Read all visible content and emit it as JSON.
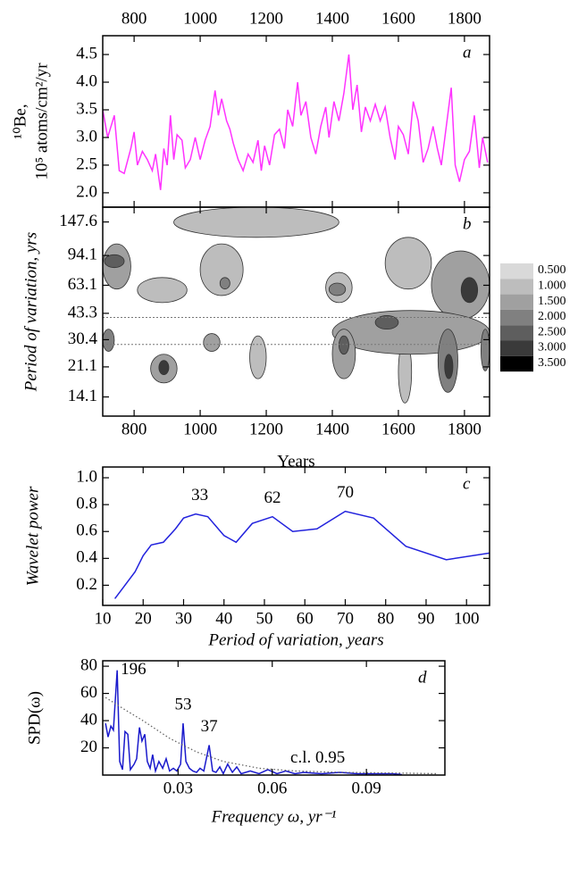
{
  "chart_data": [
    {
      "type": "line",
      "panel_label": "a",
      "ylabel": [
        "¹⁰Be,",
        "10⁵ atoms/cm²/yr"
      ],
      "xticks_position": "top",
      "x": [
        705,
        720,
        740,
        755,
        770,
        790,
        800,
        810,
        825,
        840,
        855,
        865,
        880,
        890,
        900,
        910,
        920,
        930,
        945,
        955,
        970,
        985,
        1000,
        1015,
        1030,
        1045,
        1055,
        1065,
        1080,
        1090,
        1100,
        1115,
        1130,
        1145,
        1160,
        1175,
        1185,
        1195,
        1210,
        1225,
        1240,
        1255,
        1265,
        1280,
        1295,
        1305,
        1320,
        1335,
        1350,
        1365,
        1380,
        1390,
        1405,
        1420,
        1435,
        1450,
        1462,
        1475,
        1488,
        1500,
        1515,
        1530,
        1545,
        1560,
        1575,
        1590,
        1600,
        1615,
        1630,
        1645,
        1660,
        1675,
        1690,
        1705,
        1718,
        1730,
        1745,
        1760,
        1772,
        1785,
        1800,
        1815,
        1830,
        1845,
        1855,
        1870
      ],
      "series": [
        {
          "color": "#ff33ff",
          "values": [
            3.5,
            3.0,
            3.4,
            2.4,
            2.35,
            2.8,
            3.1,
            2.5,
            2.75,
            2.6,
            2.4,
            2.7,
            2.05,
            2.8,
            2.5,
            3.4,
            2.6,
            3.05,
            2.95,
            2.45,
            2.6,
            3.0,
            2.6,
            2.95,
            3.2,
            3.85,
            3.4,
            3.7,
            3.3,
            3.15,
            2.9,
            2.6,
            2.4,
            2.7,
            2.55,
            2.95,
            2.4,
            2.85,
            2.5,
            3.05,
            3.15,
            2.8,
            3.5,
            3.2,
            4.0,
            3.4,
            3.65,
            3.0,
            2.7,
            3.2,
            3.55,
            3.0,
            3.65,
            3.3,
            3.8,
            4.5,
            3.5,
            3.95,
            3.1,
            3.55,
            3.3,
            3.6,
            3.3,
            3.55,
            3.0,
            2.6,
            3.2,
            3.05,
            2.7,
            3.65,
            3.3,
            2.55,
            2.8,
            3.2,
            2.8,
            2.5,
            3.2,
            3.9,
            2.5,
            2.2,
            2.6,
            2.75,
            3.4,
            2.45,
            3.0,
            2.55
          ]
        }
      ],
      "xlim": [
        705,
        1876
      ],
      "ylim": [
        1.74,
        4.84
      ],
      "xticks": [
        800,
        1000,
        1200,
        1400,
        1600,
        1800
      ],
      "yticks": [
        {
          "value": 2,
          "label": "2.0"
        },
        2.5,
        {
          "value": 3,
          "label": "3.0"
        },
        3.5,
        {
          "value": 4,
          "label": "4.0"
        },
        4.5
      ]
    },
    {
      "type": "contour",
      "panel_label": "b",
      "xlabel": "Years",
      "ylabel": [
        "Period of variation, yrs"
      ],
      "xticks_position": "bottom",
      "ylog": true,
      "xlim": [
        705,
        1876
      ],
      "ylim": [
        10.9,
        180
      ],
      "xticks": [
        800,
        1000,
        1200,
        1400,
        1600,
        1800
      ],
      "yticks": [
        14.1,
        21.1,
        30.4,
        43.3,
        63.1,
        94.1,
        147.6
      ],
      "reference_lines": [
        41,
        28.5
      ],
      "levels": [
        {
          "value": 0.5,
          "label": "0.500"
        },
        {
          "value": 1,
          "label": "1.000"
        },
        {
          "value": 1.5,
          "label": "1.500"
        },
        {
          "value": 2,
          "label": "2.000"
        },
        {
          "value": 2.5,
          "label": "2.500"
        },
        {
          "value": 3,
          "label": "3.000"
        },
        {
          "value": 3.5,
          "label": "3.500"
        }
      ],
      "level_colors": [
        "#d9d9d9",
        "#bdbdbd",
        "#a0a0a0",
        "#808080",
        "#5e5e5e",
        "#3a3a3a",
        "#000000"
      ],
      "blobs": [
        {
          "x": [
            920,
            1420
          ],
          "period": [
            120,
            180
          ],
          "level": 1
        },
        {
          "x": [
            810,
            960
          ],
          "period": [
            50,
            70
          ],
          "level": 1
        },
        {
          "x": [
            1000,
            1130
          ],
          "period": [
            55,
            110
          ],
          "level": 1
        },
        {
          "x": [
            1560,
            1700
          ],
          "period": [
            60,
            120
          ],
          "level": 1
        },
        {
          "x": [
            1380,
            1460
          ],
          "period": [
            50,
            75
          ],
          "level": 1
        },
        {
          "x": [
            1600,
            1640
          ],
          "period": [
            13,
            30
          ],
          "level": 1
        },
        {
          "x": [
            1150,
            1200
          ],
          "period": [
            18,
            32
          ],
          "level": 1
        },
        {
          "x": [
            705,
            790
          ],
          "period": [
            60,
            110
          ],
          "level": 1.5
        },
        {
          "x": [
            1700,
            1876
          ],
          "period": [
            40,
            100
          ],
          "level": 1.5
        },
        {
          "x": [
            1400,
            1876
          ],
          "period": [
            25,
            45
          ],
          "level": 1.5
        },
        {
          "x": [
            1400,
            1470
          ],
          "period": [
            18,
            35
          ],
          "level": 1.5
        },
        {
          "x": [
            850,
            930
          ],
          "period": [
            17,
            25
          ],
          "level": 1.5
        },
        {
          "x": [
            1010,
            1060
          ],
          "period": [
            26,
            33
          ],
          "level": 1.5
        },
        {
          "x": [
            1060,
            1090
          ],
          "period": [
            60,
            70
          ],
          "level": 2
        },
        {
          "x": [
            1390,
            1440
          ],
          "period": [
            55,
            65
          ],
          "level": 2
        },
        {
          "x": [
            1720,
            1780
          ],
          "period": [
            15,
            35
          ],
          "level": 2
        },
        {
          "x": [
            705,
            740
          ],
          "period": [
            26,
            35
          ],
          "level": 2
        },
        {
          "x": [
            1850,
            1876
          ],
          "period": [
            20,
            35
          ],
          "level": 2
        },
        {
          "x": [
            710,
            770
          ],
          "period": [
            80,
            95
          ],
          "level": 2.5
        },
        {
          "x": [
            1530,
            1600
          ],
          "period": [
            35,
            42
          ],
          "level": 2.5
        },
        {
          "x": [
            1420,
            1450
          ],
          "period": [
            25,
            32
          ],
          "level": 2.5
        },
        {
          "x": [
            1790,
            1840
          ],
          "period": [
            50,
            70
          ],
          "level": 3
        },
        {
          "x": [
            1740,
            1765
          ],
          "period": [
            18,
            25
          ],
          "level": 3
        },
        {
          "x": [
            875,
            905
          ],
          "period": [
            19,
            23
          ],
          "level": 3
        }
      ]
    },
    {
      "type": "line",
      "panel_label": "c",
      "xlabel": "Period of variation, years",
      "ylabel": [
        "Wavelet power"
      ],
      "xticks_position": "bottom",
      "x": [
        13,
        15,
        18,
        20,
        22,
        25,
        28,
        30,
        33,
        36,
        40,
        43,
        47,
        52,
        57,
        63,
        70,
        77,
        85,
        95,
        105.7
      ],
      "series": [
        {
          "color": "#2222dd",
          "values": [
            0.1,
            0.18,
            0.3,
            0.42,
            0.5,
            0.52,
            0.62,
            0.7,
            0.73,
            0.71,
            0.57,
            0.52,
            0.66,
            0.71,
            0.6,
            0.62,
            0.75,
            0.7,
            0.49,
            0.39,
            0.44
          ]
        }
      ],
      "annotations": [
        {
          "label": 33,
          "x": 34,
          "y": 0.73
        },
        {
          "label": 62,
          "x": 52,
          "y": 0.71
        },
        {
          "label": 70,
          "x": 70,
          "y": 0.75
        }
      ],
      "xlim": [
        10,
        105.7
      ],
      "ylim": [
        0.05,
        1.08
      ],
      "xticks": [
        10,
        20,
        30,
        40,
        50,
        60,
        70,
        80,
        90,
        100
      ],
      "yticks": [
        0.2,
        0.4,
        0.6,
        0.8,
        {
          "value": 1,
          "label": "1.0"
        }
      ]
    },
    {
      "type": "spectrum",
      "panel_label": "d",
      "xlabel": "Frequency ω, yr⁻¹",
      "ylabel": [
        "SPD(ω)"
      ],
      "xticks_position": "bottom",
      "x": [
        0.0069,
        0.0077,
        0.0086,
        0.0094,
        0.0106,
        0.0114,
        0.0123,
        0.0131,
        0.014,
        0.0148,
        0.016,
        0.0168,
        0.0177,
        0.0185,
        0.0194,
        0.0202,
        0.0211,
        0.0219,
        0.0228,
        0.0239,
        0.0251,
        0.0262,
        0.0273,
        0.0285,
        0.0296,
        0.0308,
        0.0316,
        0.0325,
        0.0336,
        0.0347,
        0.0359,
        0.037,
        0.0382,
        0.0399,
        0.041,
        0.0421,
        0.0433,
        0.0444,
        0.0458,
        0.0473,
        0.0487,
        0.0501,
        0.053,
        0.0558,
        0.0586,
        0.0615,
        0.0643,
        0.0672,
        0.07,
        0.0757,
        0.0814,
        0.0871,
        0.0985,
        0.1013
      ],
      "series": [
        {
          "color": "#1a1acc",
          "values": [
            38,
            28,
            36,
            33,
            77,
            10,
            4,
            32,
            30,
            4,
            8,
            12,
            35,
            25,
            30,
            10,
            5,
            15,
            3,
            10,
            5,
            12,
            3,
            5,
            3,
            8,
            38,
            10,
            5,
            3,
            2,
            5,
            3,
            22,
            3,
            2,
            6,
            1,
            8,
            2,
            6,
            1,
            3,
            1,
            4,
            1,
            3,
            1,
            2,
            1,
            2,
            1,
            1,
            0.3
          ]
        }
      ],
      "threshold": {
        "label": "c.l. 0.95",
        "x": [
          0.0069,
          0.0131,
          0.0188,
          0.0273,
          0.0359,
          0.0444,
          0.0558,
          0.0672,
          0.0814,
          0.0985,
          0.1127
        ],
        "values": [
          57,
          48,
          40,
          27,
          17,
          10,
          5,
          3,
          2,
          1.5,
          1
        ]
      },
      "annotations": [
        {
          "label": 196,
          "x": 0.0106,
          "y": 77
        },
        {
          "label": 53,
          "x": 0.0316,
          "y": 38
        },
        {
          "label": 37,
          "x": 0.0399,
          "y": 22
        }
      ],
      "xlim": [
        0.006,
        0.115
      ],
      "ylim": [
        0,
        84
      ],
      "xticks": [
        0.03,
        0.06,
        0.09
      ],
      "yticks": [
        20,
        40,
        60,
        80
      ]
    }
  ]
}
